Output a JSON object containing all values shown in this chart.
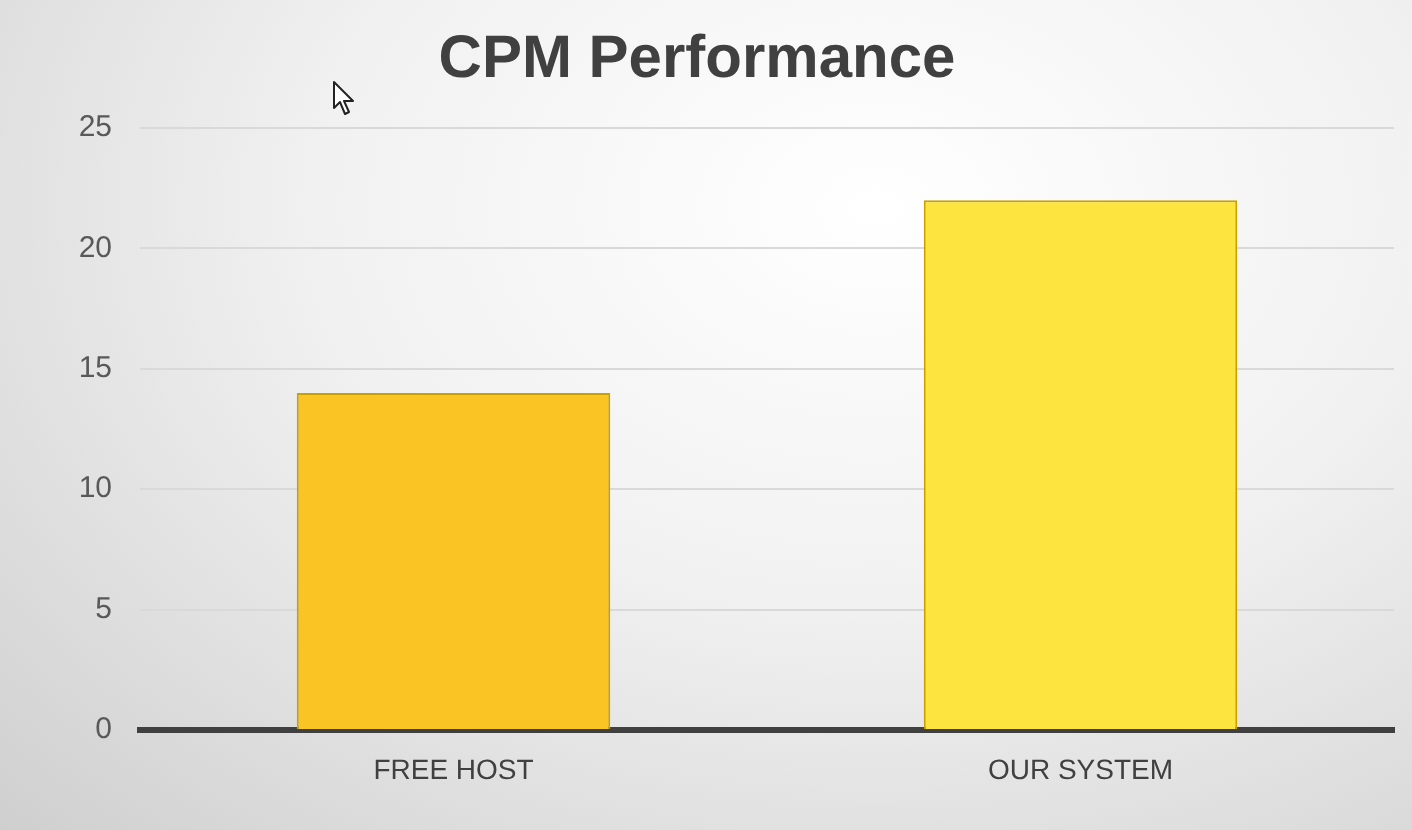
{
  "chart_data": {
    "type": "bar",
    "title": "CPM Performance",
    "categories": [
      "FREE HOST",
      "OUR SYSTEM"
    ],
    "values": [
      14,
      22
    ],
    "colors": [
      "#fbc425",
      "#fde43e"
    ],
    "ylim": [
      0,
      25
    ],
    "yticks": [
      0,
      5,
      10,
      15,
      20,
      25
    ],
    "grid": "y"
  }
}
